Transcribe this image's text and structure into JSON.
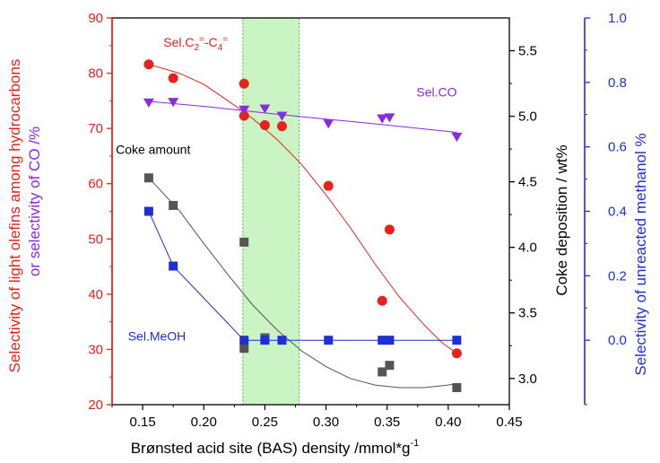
{
  "chart_data": {
    "type": "scatter",
    "x": {
      "label": "Brønsted acid site (BAS) density /mmol*g",
      "label_superscript": "-1",
      "range": [
        0.125,
        0.45
      ],
      "ticks": [
        "0.15",
        "0.20",
        "0.25",
        "0.30",
        "0.35",
        "0.40",
        "0.45"
      ]
    },
    "y_left": {
      "label_line1": "Selectivity of light olefins among hydrocarbons",
      "label_line2": "or selectivity of CO /%",
      "range": [
        20,
        90
      ],
      "ticks": [
        "20",
        "30",
        "40",
        "50",
        "60",
        "70",
        "80",
        "90"
      ],
      "color": "#e8211a",
      "color2": "#8a2be2"
    },
    "y_coke": {
      "label": "Coke deposition / wt%",
      "range": [
        2.8,
        5.75
      ],
      "ticks": [
        "3.0",
        "3.5",
        "4.0",
        "4.5",
        "5.0",
        "5.5"
      ],
      "color": "#111111"
    },
    "y_right": {
      "label": "Selectivity of  unreacted methanol  %",
      "range": [
        -0.2,
        1.0
      ],
      "ticks": [
        "0.0",
        "0.2",
        "0.4",
        "0.6",
        "0.8",
        "1.0"
      ],
      "color": "#1f2fd6"
    },
    "highlight_band": {
      "x": [
        0.232,
        0.278
      ],
      "color": "#b8f0b0"
    },
    "series": [
      {
        "name": "Sel.C2=-C4=",
        "label_parts": [
          "Sel.C",
          "2",
          "=",
          "-C",
          "4",
          "="
        ],
        "axis": "y_left",
        "marker": "circle",
        "color": "#e8211a",
        "points": [
          [
            0.155,
            81.6
          ],
          [
            0.175,
            79.1
          ],
          [
            0.233,
            78.1
          ],
          [
            0.233,
            72.3
          ],
          [
            0.25,
            70.6
          ],
          [
            0.264,
            70.4
          ],
          [
            0.302,
            59.6
          ],
          [
            0.346,
            38.8
          ],
          [
            0.352,
            51.7
          ],
          [
            0.407,
            29.3
          ]
        ],
        "fit": [
          [
            0.155,
            81.6
          ],
          [
            0.18,
            80.0
          ],
          [
            0.2,
            78.0
          ],
          [
            0.22,
            75.0
          ],
          [
            0.24,
            71.8
          ],
          [
            0.26,
            68.0
          ],
          [
            0.28,
            63.5
          ],
          [
            0.3,
            58.0
          ],
          [
            0.32,
            52.0
          ],
          [
            0.34,
            45.5
          ],
          [
            0.36,
            39.5
          ],
          [
            0.38,
            34.5
          ],
          [
            0.395,
            31.2
          ],
          [
            0.407,
            29.3
          ]
        ]
      },
      {
        "name": "Sel.CO",
        "axis": "y_left",
        "marker": "triangle-down",
        "color": "#8a2be2",
        "points": [
          [
            0.155,
            74.7
          ],
          [
            0.175,
            74.8
          ],
          [
            0.233,
            73.4
          ],
          [
            0.25,
            73.6
          ],
          [
            0.264,
            72.3
          ],
          [
            0.302,
            70.9
          ],
          [
            0.346,
            71.8
          ],
          [
            0.352,
            72.0
          ],
          [
            0.407,
            68.5
          ]
        ],
        "fit": [
          [
            0.155,
            74.9
          ],
          [
            0.2,
            74.0
          ],
          [
            0.25,
            72.8
          ],
          [
            0.3,
            71.7
          ],
          [
            0.35,
            70.6
          ],
          [
            0.407,
            69.3
          ]
        ]
      },
      {
        "name": "Coke amount",
        "axis": "y_coke",
        "marker": "square",
        "color": "#555555",
        "points": [
          [
            0.155,
            4.53
          ],
          [
            0.175,
            4.32
          ],
          [
            0.233,
            4.04
          ],
          [
            0.233,
            3.23
          ],
          [
            0.25,
            3.31
          ],
          [
            0.346,
            3.05
          ],
          [
            0.352,
            3.1
          ],
          [
            0.407,
            2.93
          ]
        ],
        "fit": [
          [
            0.155,
            4.53
          ],
          [
            0.18,
            4.28
          ],
          [
            0.2,
            4.03
          ],
          [
            0.22,
            3.79
          ],
          [
            0.24,
            3.56
          ],
          [
            0.26,
            3.37
          ],
          [
            0.28,
            3.21
          ],
          [
            0.3,
            3.09
          ],
          [
            0.32,
            3.0
          ],
          [
            0.34,
            2.95
          ],
          [
            0.36,
            2.93
          ],
          [
            0.38,
            2.93
          ],
          [
            0.4,
            2.95
          ],
          [
            0.407,
            2.96
          ]
        ]
      },
      {
        "name": "Sel.MeOH",
        "axis": "y_right",
        "marker": "square",
        "color": "#1f2fd6",
        "points": [
          [
            0.155,
            0.4
          ],
          [
            0.175,
            0.23
          ],
          [
            0.233,
            0.0
          ],
          [
            0.25,
            0.0
          ],
          [
            0.264,
            0.0
          ],
          [
            0.302,
            0.0
          ],
          [
            0.346,
            0.0
          ],
          [
            0.352,
            0.0
          ],
          [
            0.407,
            0.0
          ]
        ],
        "fit": [
          [
            0.155,
            0.4
          ],
          [
            0.175,
            0.23
          ],
          [
            0.233,
            0.0
          ],
          [
            0.25,
            0.0
          ],
          [
            0.264,
            0.0
          ],
          [
            0.302,
            0.0
          ],
          [
            0.346,
            0.0
          ],
          [
            0.352,
            0.0
          ],
          [
            0.407,
            0.0
          ]
        ]
      }
    ],
    "annotations": {
      "olefin": "Sel.C2=-C4=",
      "co": "Sel.CO",
      "coke": "Coke amount",
      "meoh": "Sel.MeOH"
    },
    "grid": false,
    "legend": "none"
  }
}
